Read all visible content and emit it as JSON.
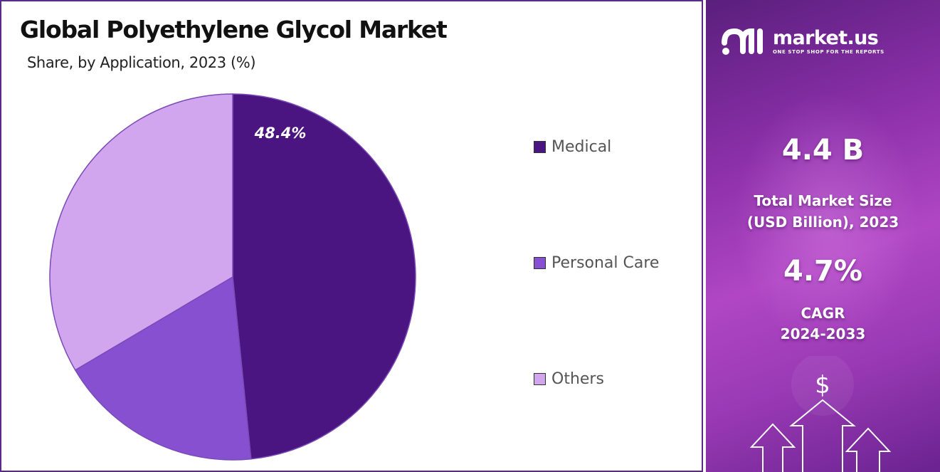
{
  "header": {
    "title": "Global Polyethylene Glycol Market",
    "subtitle": "Share, by Application, 2023 (%)"
  },
  "chart_data": {
    "type": "pie",
    "categories": [
      "Medical",
      "Personal Care",
      "Others"
    ],
    "values": [
      48.4,
      18.1,
      33.5
    ],
    "data_labels": [
      "48.4%",
      "",
      ""
    ],
    "colors": [
      "#4a1580",
      "#8750d1",
      "#d2a6ee"
    ],
    "legend_position": "right",
    "start_angle": "12 o'clock, clockwise"
  },
  "sidebar": {
    "logo": {
      "name": "market.us",
      "tagline": "ONE STOP SHOP FOR THE REPORTS",
      "icon": "market-us-logo-icon"
    },
    "market_size_value": "4.4 B",
    "market_size_label_line1": "Total Market Size",
    "market_size_label_line2": "(USD Billion), 2023",
    "cagr_value": "4.7%",
    "cagr_label_line1": "CAGR",
    "cagr_label_line2": "2024-2033",
    "currency_symbol": "$",
    "decor_icon": "growth-arrows-icon"
  }
}
